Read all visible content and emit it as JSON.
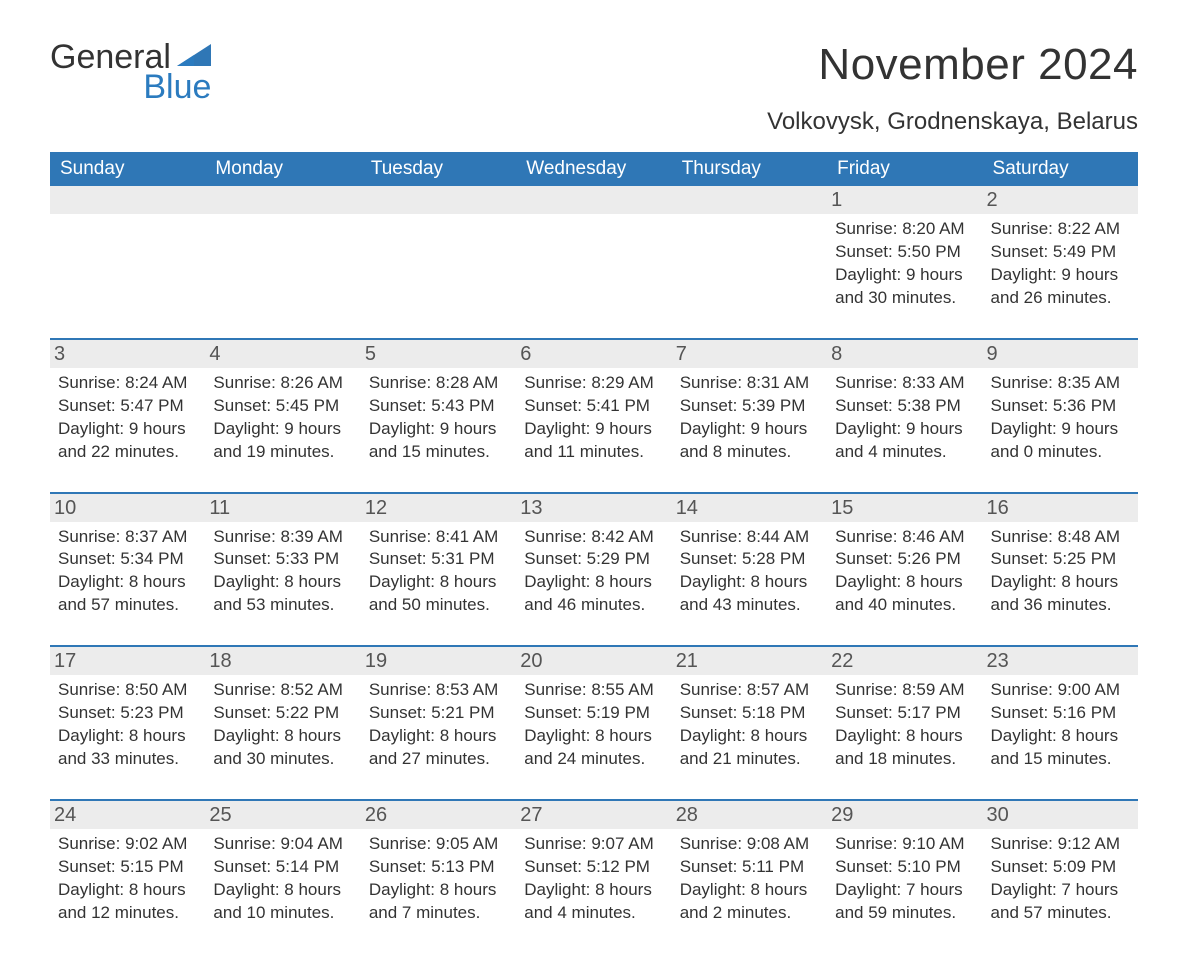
{
  "logo": {
    "line1": "General",
    "line2": "Blue",
    "general_color": "#333333",
    "blue_color": "#2b7bbf"
  },
  "title": "November 2024",
  "location": "Volkovysk, Grodnenskaya, Belarus",
  "colors": {
    "header_bg": "#2f77b6",
    "header_text": "#ffffff",
    "band_bg": "#ececec",
    "text": "#333333",
    "rule": "#2f77b6"
  },
  "layout": {
    "columns": 7,
    "rows": 5,
    "title_fontsize": 44,
    "location_fontsize": 24,
    "dayheader_fontsize": 19,
    "daynum_fontsize": 20,
    "body_fontsize": 17
  },
  "day_headers": [
    "Sunday",
    "Monday",
    "Tuesday",
    "Wednesday",
    "Thursday",
    "Friday",
    "Saturday"
  ],
  "weeks": [
    [
      {
        "empty": true
      },
      {
        "empty": true
      },
      {
        "empty": true
      },
      {
        "empty": true
      },
      {
        "empty": true
      },
      {
        "num": "1",
        "sunrise": "Sunrise: 8:20 AM",
        "sunset": "Sunset: 5:50 PM",
        "day1": "Daylight: 9 hours",
        "day2": "and 30 minutes."
      },
      {
        "num": "2",
        "sunrise": "Sunrise: 8:22 AM",
        "sunset": "Sunset: 5:49 PM",
        "day1": "Daylight: 9 hours",
        "day2": "and 26 minutes."
      }
    ],
    [
      {
        "num": "3",
        "sunrise": "Sunrise: 8:24 AM",
        "sunset": "Sunset: 5:47 PM",
        "day1": "Daylight: 9 hours",
        "day2": "and 22 minutes."
      },
      {
        "num": "4",
        "sunrise": "Sunrise: 8:26 AM",
        "sunset": "Sunset: 5:45 PM",
        "day1": "Daylight: 9 hours",
        "day2": "and 19 minutes."
      },
      {
        "num": "5",
        "sunrise": "Sunrise: 8:28 AM",
        "sunset": "Sunset: 5:43 PM",
        "day1": "Daylight: 9 hours",
        "day2": "and 15 minutes."
      },
      {
        "num": "6",
        "sunrise": "Sunrise: 8:29 AM",
        "sunset": "Sunset: 5:41 PM",
        "day1": "Daylight: 9 hours",
        "day2": "and 11 minutes."
      },
      {
        "num": "7",
        "sunrise": "Sunrise: 8:31 AM",
        "sunset": "Sunset: 5:39 PM",
        "day1": "Daylight: 9 hours",
        "day2": "and 8 minutes."
      },
      {
        "num": "8",
        "sunrise": "Sunrise: 8:33 AM",
        "sunset": "Sunset: 5:38 PM",
        "day1": "Daylight: 9 hours",
        "day2": "and 4 minutes."
      },
      {
        "num": "9",
        "sunrise": "Sunrise: 8:35 AM",
        "sunset": "Sunset: 5:36 PM",
        "day1": "Daylight: 9 hours",
        "day2": "and 0 minutes."
      }
    ],
    [
      {
        "num": "10",
        "sunrise": "Sunrise: 8:37 AM",
        "sunset": "Sunset: 5:34 PM",
        "day1": "Daylight: 8 hours",
        "day2": "and 57 minutes."
      },
      {
        "num": "11",
        "sunrise": "Sunrise: 8:39 AM",
        "sunset": "Sunset: 5:33 PM",
        "day1": "Daylight: 8 hours",
        "day2": "and 53 minutes."
      },
      {
        "num": "12",
        "sunrise": "Sunrise: 8:41 AM",
        "sunset": "Sunset: 5:31 PM",
        "day1": "Daylight: 8 hours",
        "day2": "and 50 minutes."
      },
      {
        "num": "13",
        "sunrise": "Sunrise: 8:42 AM",
        "sunset": "Sunset: 5:29 PM",
        "day1": "Daylight: 8 hours",
        "day2": "and 46 minutes."
      },
      {
        "num": "14",
        "sunrise": "Sunrise: 8:44 AM",
        "sunset": "Sunset: 5:28 PM",
        "day1": "Daylight: 8 hours",
        "day2": "and 43 minutes."
      },
      {
        "num": "15",
        "sunrise": "Sunrise: 8:46 AM",
        "sunset": "Sunset: 5:26 PM",
        "day1": "Daylight: 8 hours",
        "day2": "and 40 minutes."
      },
      {
        "num": "16",
        "sunrise": "Sunrise: 8:48 AM",
        "sunset": "Sunset: 5:25 PM",
        "day1": "Daylight: 8 hours",
        "day2": "and 36 minutes."
      }
    ],
    [
      {
        "num": "17",
        "sunrise": "Sunrise: 8:50 AM",
        "sunset": "Sunset: 5:23 PM",
        "day1": "Daylight: 8 hours",
        "day2": "and 33 minutes."
      },
      {
        "num": "18",
        "sunrise": "Sunrise: 8:52 AM",
        "sunset": "Sunset: 5:22 PM",
        "day1": "Daylight: 8 hours",
        "day2": "and 30 minutes."
      },
      {
        "num": "19",
        "sunrise": "Sunrise: 8:53 AM",
        "sunset": "Sunset: 5:21 PM",
        "day1": "Daylight: 8 hours",
        "day2": "and 27 minutes."
      },
      {
        "num": "20",
        "sunrise": "Sunrise: 8:55 AM",
        "sunset": "Sunset: 5:19 PM",
        "day1": "Daylight: 8 hours",
        "day2": "and 24 minutes."
      },
      {
        "num": "21",
        "sunrise": "Sunrise: 8:57 AM",
        "sunset": "Sunset: 5:18 PM",
        "day1": "Daylight: 8 hours",
        "day2": "and 21 minutes."
      },
      {
        "num": "22",
        "sunrise": "Sunrise: 8:59 AM",
        "sunset": "Sunset: 5:17 PM",
        "day1": "Daylight: 8 hours",
        "day2": "and 18 minutes."
      },
      {
        "num": "23",
        "sunrise": "Sunrise: 9:00 AM",
        "sunset": "Sunset: 5:16 PM",
        "day1": "Daylight: 8 hours",
        "day2": "and 15 minutes."
      }
    ],
    [
      {
        "num": "24",
        "sunrise": "Sunrise: 9:02 AM",
        "sunset": "Sunset: 5:15 PM",
        "day1": "Daylight: 8 hours",
        "day2": "and 12 minutes."
      },
      {
        "num": "25",
        "sunrise": "Sunrise: 9:04 AM",
        "sunset": "Sunset: 5:14 PM",
        "day1": "Daylight: 8 hours",
        "day2": "and 10 minutes."
      },
      {
        "num": "26",
        "sunrise": "Sunrise: 9:05 AM",
        "sunset": "Sunset: 5:13 PM",
        "day1": "Daylight: 8 hours",
        "day2": "and 7 minutes."
      },
      {
        "num": "27",
        "sunrise": "Sunrise: 9:07 AM",
        "sunset": "Sunset: 5:12 PM",
        "day1": "Daylight: 8 hours",
        "day2": "and 4 minutes."
      },
      {
        "num": "28",
        "sunrise": "Sunrise: 9:08 AM",
        "sunset": "Sunset: 5:11 PM",
        "day1": "Daylight: 8 hours",
        "day2": "and 2 minutes."
      },
      {
        "num": "29",
        "sunrise": "Sunrise: 9:10 AM",
        "sunset": "Sunset: 5:10 PM",
        "day1": "Daylight: 7 hours",
        "day2": "and 59 minutes."
      },
      {
        "num": "30",
        "sunrise": "Sunrise: 9:12 AM",
        "sunset": "Sunset: 5:09 PM",
        "day1": "Daylight: 7 hours",
        "day2": "and 57 minutes."
      }
    ]
  ]
}
